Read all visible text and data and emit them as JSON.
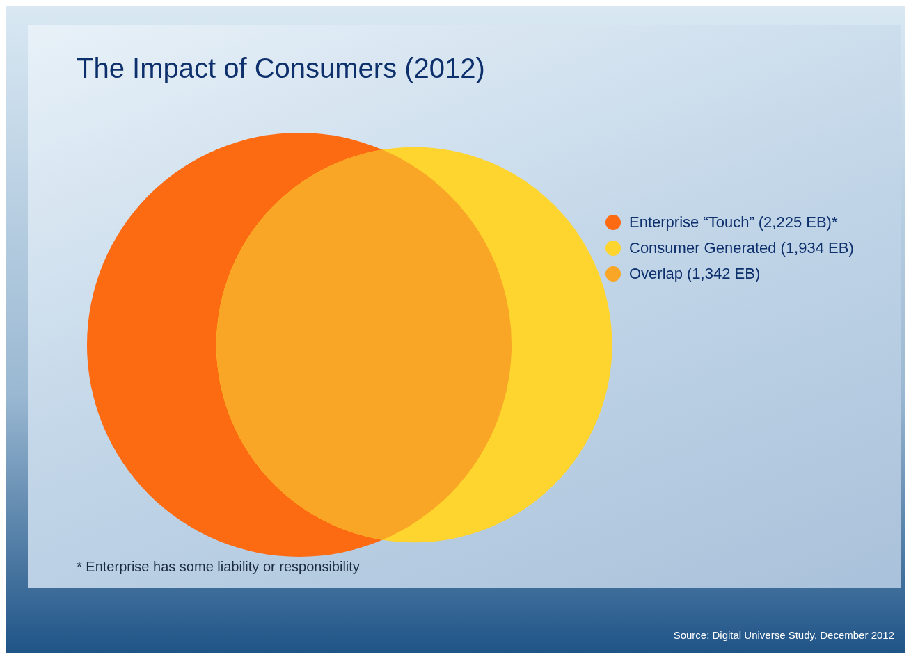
{
  "chart_data": {
    "type": "other",
    "title": "The Impact of Consumers (2012)",
    "categories": [
      "Enterprise “Touch”",
      "Consumer Generated",
      "Overlap"
    ],
    "values": [
      2225,
      1934,
      1342
    ],
    "value_labels": [
      "(2,225 EB)*",
      "(1,934 EB)",
      "(1,342 EB)"
    ],
    "colors": [
      "#fc6a12",
      "#fed42e",
      "#f9a526"
    ],
    "annotations": [
      "* Enterprise has some liability or responsibility",
      "Source: Digital Universe Study, December 2012"
    ]
  }
}
